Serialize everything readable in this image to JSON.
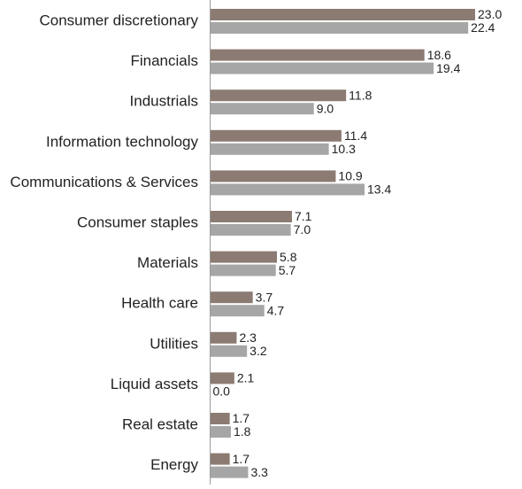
{
  "chart_data": {
    "type": "bar",
    "orientation": "horizontal",
    "title": "",
    "xlabel": "",
    "ylabel": "",
    "grid": false,
    "legend": "none",
    "xlim": [
      0,
      23.0
    ],
    "categories": [
      "Consumer discretionary",
      "Financials",
      "Industrials",
      "Information technology",
      "Communications & Services",
      "Consumer staples",
      "Materials",
      "Health care",
      "Utilities",
      "Liquid assets",
      "Real estate",
      "Energy"
    ],
    "series": [
      {
        "color": "#8c7b72",
        "values": [
          23.0,
          18.6,
          11.8,
          11.4,
          10.9,
          7.1,
          5.8,
          3.7,
          2.3,
          2.1,
          1.7,
          1.7
        ],
        "labels": [
          "23.0",
          "18.6",
          "11.8",
          "11.4",
          "10.9",
          "7.1",
          "5.8",
          "3.7",
          "2.3",
          "2.1",
          "1.7",
          "1.7"
        ]
      },
      {
        "color": "#a6a6a6",
        "values": [
          22.4,
          19.4,
          9.0,
          10.3,
          13.4,
          7.0,
          5.7,
          4.7,
          3.2,
          0.0,
          1.8,
          3.3
        ],
        "labels": [
          "22.4",
          "19.4",
          "9.0",
          "10.3",
          "13.4",
          "7.0",
          "5.7",
          "4.7",
          "3.2",
          "0.0",
          "1.8",
          "3.3"
        ]
      }
    ]
  }
}
